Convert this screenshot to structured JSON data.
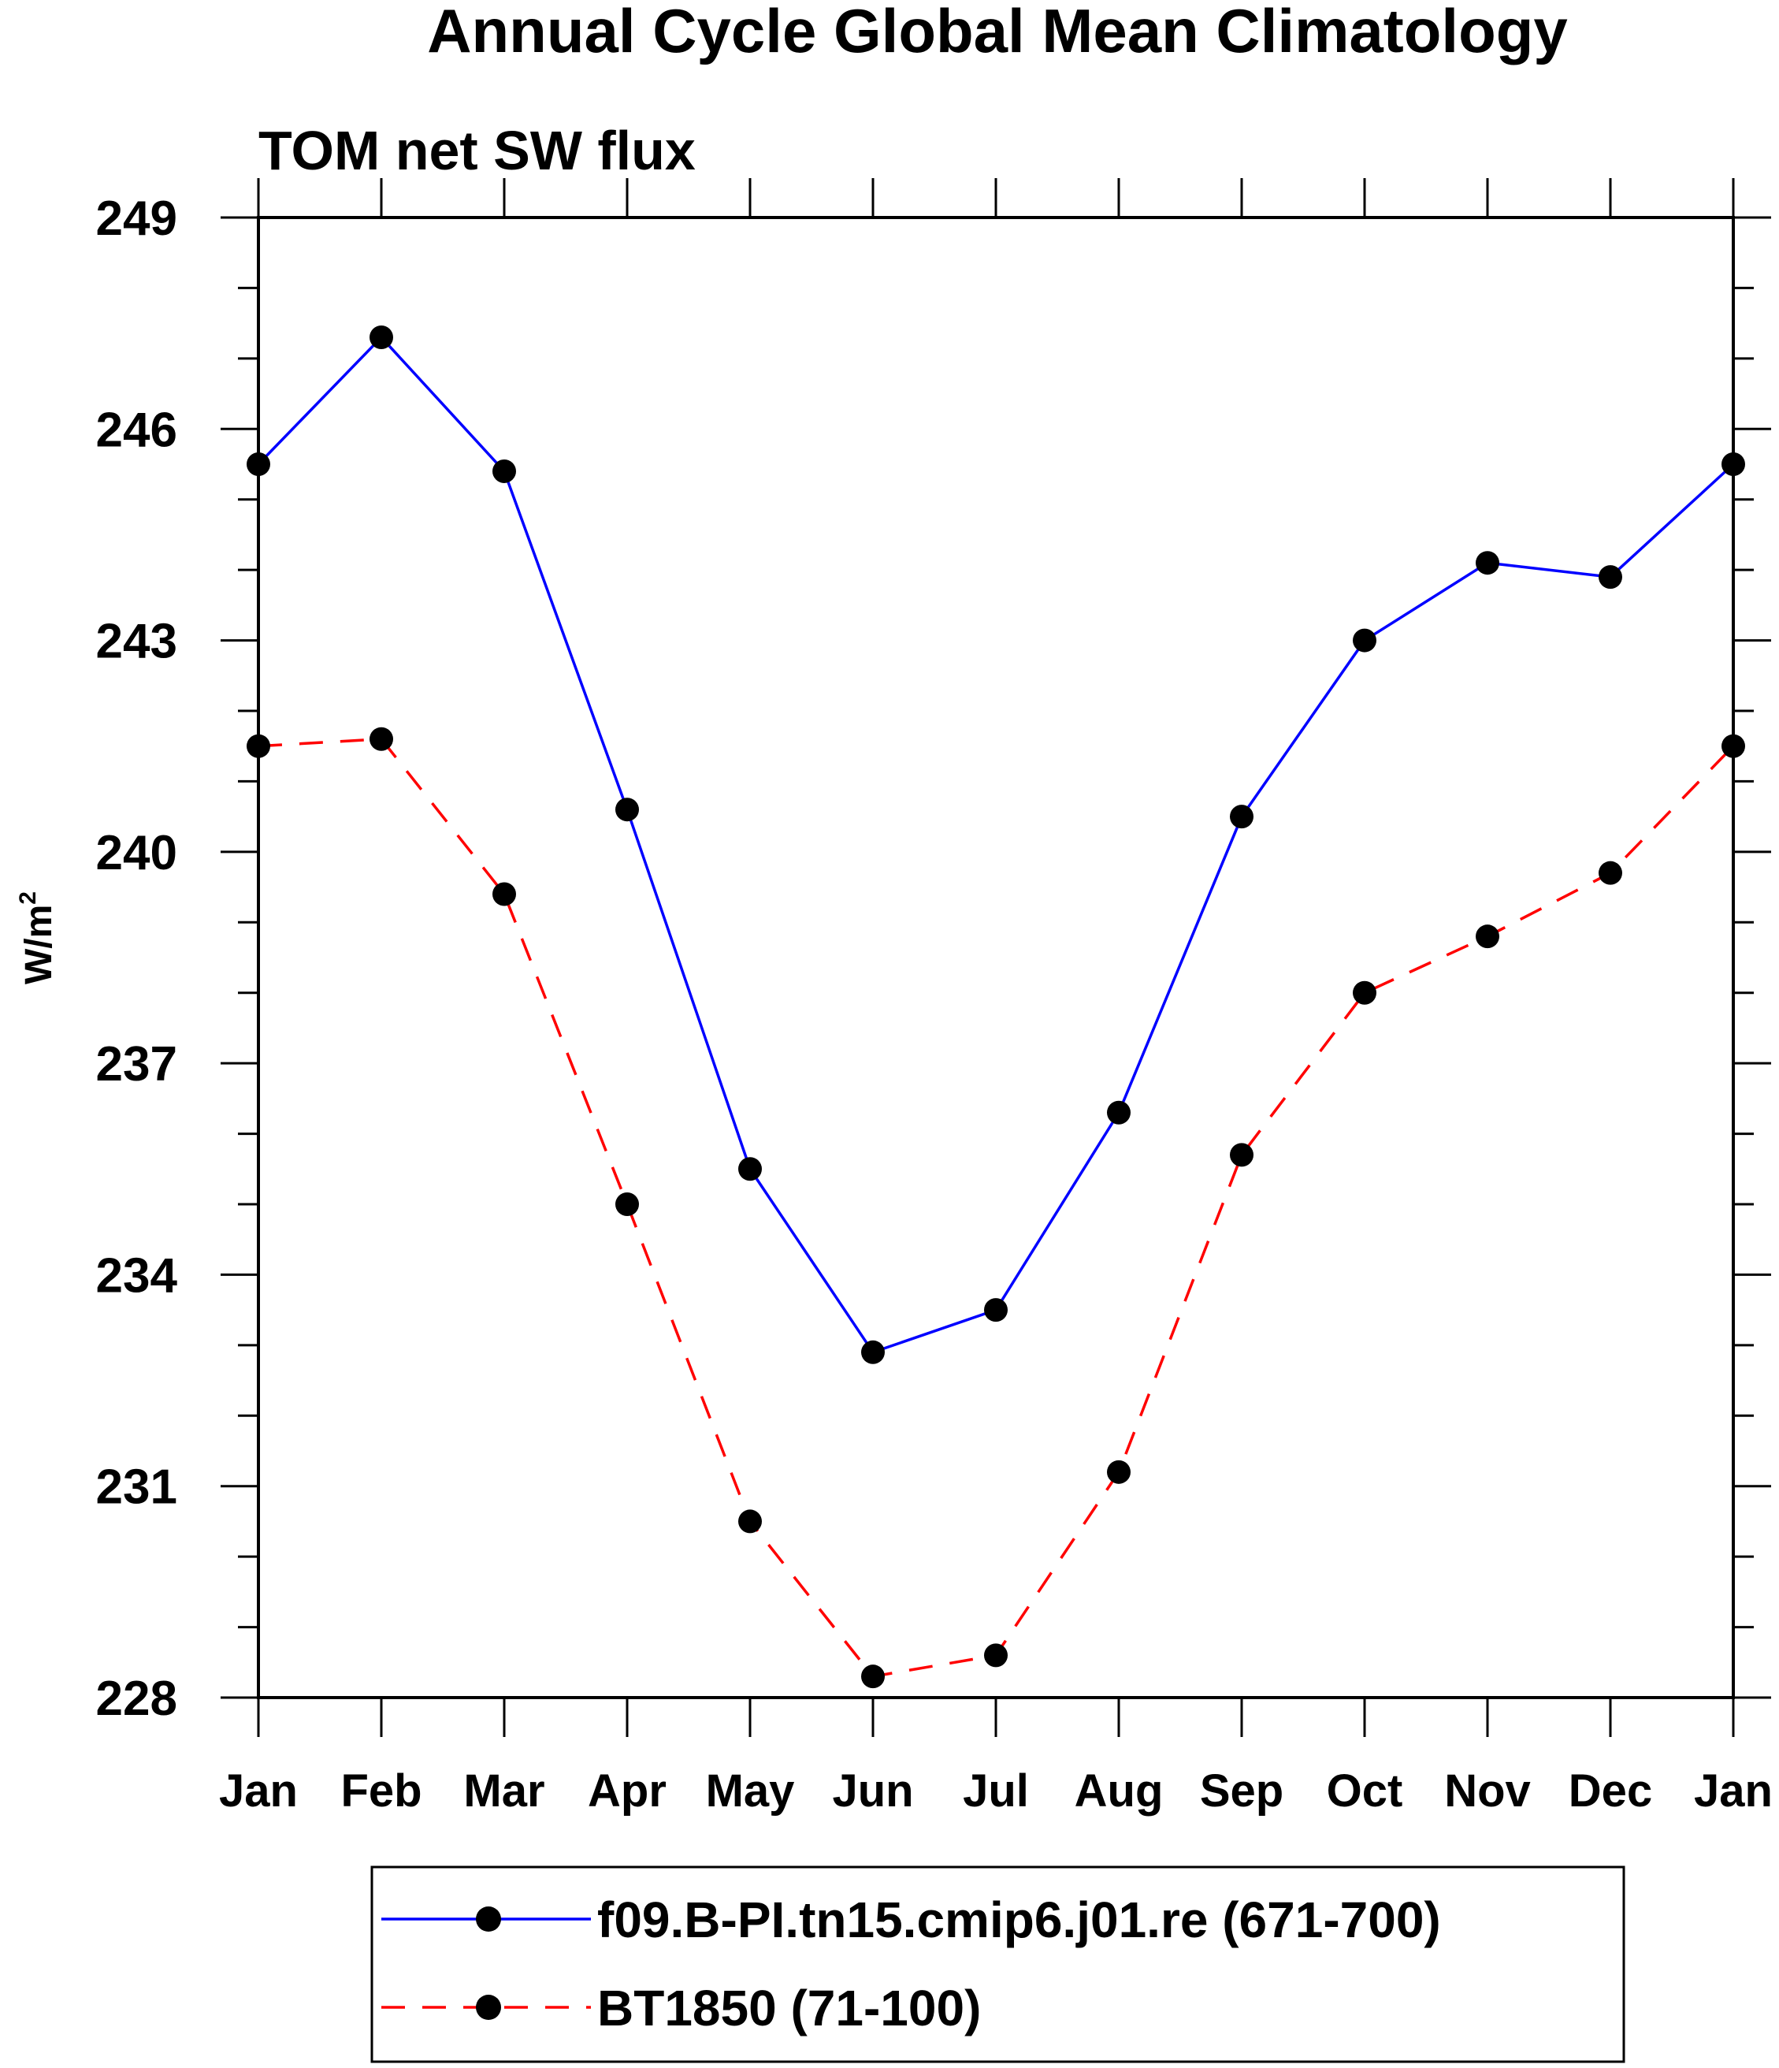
{
  "chart_data": {
    "type": "line",
    "title": "Annual Cycle Global Mean Climatology",
    "subtitle": "TOM net SW flux",
    "xlabel": "",
    "ylabel": "W/m",
    "ylabel_superscript": "2",
    "categories": [
      "Jan",
      "Feb",
      "Mar",
      "Apr",
      "May",
      "Jun",
      "Jul",
      "Aug",
      "Sep",
      "Oct",
      "Nov",
      "Dec",
      "Jan"
    ],
    "yticks": [
      "249",
      "246",
      "243",
      "240",
      "237",
      "234",
      "231",
      "228"
    ],
    "ylim": [
      228,
      249
    ],
    "grid": false,
    "legend_position": "bottom",
    "series": [
      {
        "name": "f09.B-PI.tn15.cmip6.j01.re (671-700)",
        "color": "#0000ff",
        "line_style": "solid",
        "marker": "filled-circle",
        "values": [
          245.5,
          247.3,
          245.4,
          240.6,
          235.5,
          232.9,
          233.5,
          236.3,
          240.5,
          243.0,
          244.1,
          243.9,
          245.5
        ]
      },
      {
        "name": "BT1850 (71-100)",
        "color": "#ff0000",
        "line_style": "dashed",
        "marker": "filled-circle",
        "values": [
          241.5,
          241.6,
          239.4,
          235.0,
          230.5,
          228.3,
          228.6,
          231.2,
          235.7,
          238.0,
          238.8,
          239.7,
          241.5
        ]
      }
    ]
  }
}
